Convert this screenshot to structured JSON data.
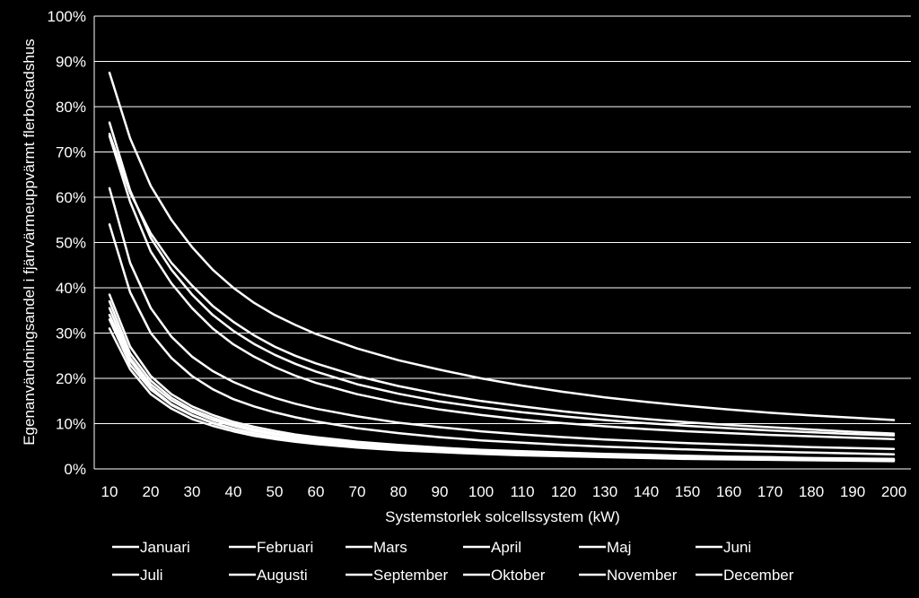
{
  "chart_data": {
    "type": "line",
    "title": "",
    "xlabel": "Systemstorlek solcellssystem (kW)",
    "ylabel": "Egenanvändningsandel i fjärrvärmeuppvärmt flerbostadshus",
    "xlim": [
      10,
      200
    ],
    "ylim": [
      0,
      100
    ],
    "x_ticks": [
      "10",
      "20",
      "30",
      "40",
      "50",
      "60",
      "70",
      "80",
      "90",
      "100",
      "110",
      "120",
      "130",
      "140",
      "150",
      "160",
      "170",
      "180",
      "190",
      "200"
    ],
    "y_ticks": [
      "0%",
      "10%",
      "20%",
      "30%",
      "40%",
      "50%",
      "60%",
      "70%",
      "80%",
      "90%",
      "100%"
    ],
    "y_tick_values": [
      0,
      10,
      20,
      30,
      40,
      50,
      60,
      70,
      80,
      90,
      100
    ],
    "grid": true,
    "legend_position": "bottom",
    "line_color": "#ffffff",
    "x": [
      10,
      15,
      20,
      25,
      30,
      35,
      40,
      45,
      50,
      55,
      60,
      70,
      80,
      90,
      100,
      110,
      120,
      130,
      140,
      150,
      160,
      170,
      180,
      190,
      200
    ],
    "series": [
      {
        "name": "Januari",
        "values": [
          31,
          22,
          16.5,
          13.3,
          11,
          9.5,
          8.3,
          7.3,
          6.6,
          6.0,
          5.5,
          4.7,
          4.1,
          3.7,
          3.3,
          3.0,
          2.8,
          2.6,
          2.4,
          2.2,
          2.1,
          2.0,
          1.9,
          1.8,
          1.7
        ]
      },
      {
        "name": "Februari",
        "values": [
          34,
          24,
          18,
          14.3,
          11.9,
          10.2,
          8.9,
          7.9,
          7.1,
          6.5,
          6.0,
          5.1,
          4.5,
          4.0,
          3.6,
          3.3,
          3.0,
          2.8,
          2.6,
          2.4,
          2.3,
          2.2,
          2.1,
          2.0,
          1.9
        ]
      },
      {
        "name": "Mars",
        "values": [
          54,
          39,
          30,
          24.5,
          20.5,
          17.6,
          15.4,
          13.8,
          12.5,
          11.4,
          10.5,
          9.0,
          7.9,
          7.0,
          6.3,
          5.8,
          5.3,
          4.9,
          4.6,
          4.3,
          4.0,
          3.8,
          3.6,
          3.4,
          3.2
        ]
      },
      {
        "name": "April",
        "values": [
          73.5,
          59,
          48,
          41,
          35.5,
          31,
          27.5,
          24.8,
          22.5,
          20.6,
          19,
          16.5,
          14.6,
          13.1,
          11.9,
          10.9,
          10.1,
          9.4,
          8.8,
          8.3,
          7.9,
          7.5,
          7.2,
          6.9,
          6.6
        ]
      },
      {
        "name": "Maj",
        "values": [
          87.5,
          73,
          62.5,
          55,
          49,
          44,
          40,
          36.7,
          34,
          31.8,
          29.8,
          26.6,
          24,
          21.9,
          20,
          18.4,
          17,
          15.8,
          14.8,
          13.9,
          13.1,
          12.4,
          11.8,
          11.3,
          10.8
        ]
      },
      {
        "name": "Juni",
        "values": [
          76.5,
          61.5,
          51,
          44,
          38.5,
          34,
          30.5,
          27.6,
          25.2,
          23.2,
          21.5,
          18.7,
          16.6,
          14.9,
          13.6,
          12.5,
          11.6,
          10.8,
          10.1,
          9.5,
          9.0,
          8.5,
          8.1,
          7.7,
          7.4
        ]
      },
      {
        "name": "Juli",
        "values": [
          74,
          61,
          52,
          45.5,
          40.5,
          36,
          32.5,
          29.5,
          27,
          25,
          23.3,
          20.5,
          18.3,
          16.5,
          15,
          13.8,
          12.7,
          11.8,
          11,
          10.3,
          9.7,
          9.2,
          8.7,
          8.2,
          7.8
        ]
      },
      {
        "name": "Augusti",
        "values": [
          62,
          45.5,
          35.5,
          29.2,
          24.8,
          21.6,
          19.2,
          17.3,
          15.7,
          14.4,
          13.3,
          11.6,
          10.2,
          9.2,
          8.3,
          7.6,
          7.0,
          6.5,
          6.1,
          5.7,
          5.4,
          5.1,
          4.8,
          4.6,
          4.4
        ]
      },
      {
        "name": "September",
        "values": [
          38.5,
          27,
          20.5,
          16.5,
          13.8,
          11.9,
          10.4,
          9.3,
          8.4,
          7.6,
          7.0,
          6.0,
          5.3,
          4.7,
          4.2,
          3.9,
          3.6,
          3.3,
          3.1,
          2.9,
          2.7,
          2.6,
          2.4,
          2.3,
          2.2
        ]
      },
      {
        "name": "Oktober",
        "values": [
          37,
          25.5,
          19.5,
          15.7,
          13.1,
          11.3,
          9.9,
          8.8,
          7.9,
          7.2,
          6.6,
          5.7,
          5.0,
          4.4,
          4.0,
          3.6,
          3.3,
          3.1,
          2.9,
          2.7,
          2.5,
          2.4,
          2.3,
          2.2,
          2.1
        ]
      },
      {
        "name": "November",
        "values": [
          35.5,
          24.5,
          18.7,
          15.1,
          12.6,
          10.8,
          9.5,
          8.4,
          7.6,
          6.9,
          6.3,
          5.4,
          4.8,
          4.2,
          3.8,
          3.5,
          3.2,
          3.0,
          2.8,
          2.6,
          2.4,
          2.3,
          2.2,
          2.1,
          2.0
        ]
      },
      {
        "name": "December",
        "values": [
          33,
          23,
          17.5,
          14.1,
          11.8,
          10.1,
          8.8,
          7.8,
          7.0,
          6.4,
          5.9,
          5.1,
          4.4,
          3.9,
          3.5,
          3.2,
          3.0,
          2.7,
          2.5,
          2.4,
          2.2,
          2.1,
          2.0,
          1.9,
          1.8
        ]
      }
    ]
  }
}
